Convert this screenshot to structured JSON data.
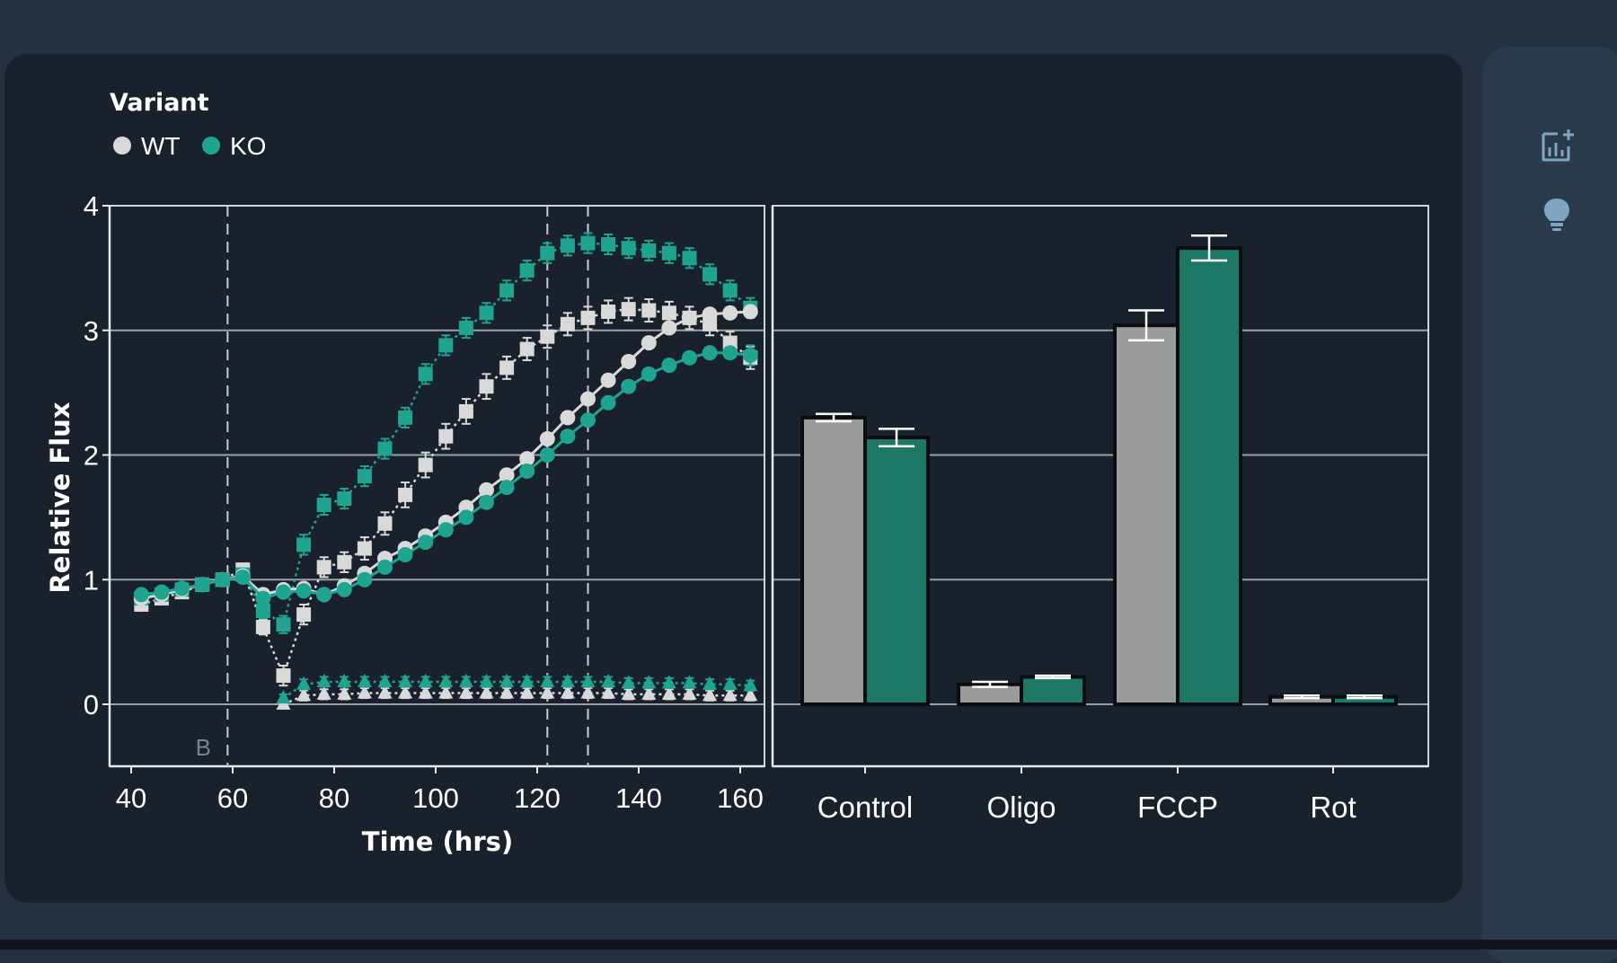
{
  "colors": {
    "page_bg": "#243140",
    "card_bg": "#19222c",
    "side_panel_bg": "#2a3a4b",
    "WT": "#d9d9d9",
    "KO": "#1fa58f",
    "WT_bar": "#9a9c9b",
    "KO_bar": "#1d7866",
    "grid": "#9aa1a8",
    "icon": "#7fa6c0"
  },
  "legend": {
    "title": "Variant",
    "items": [
      {
        "label": "WT",
        "color": "#d9d9d9"
      },
      {
        "label": "KO",
        "color": "#1fa58f"
      }
    ]
  },
  "side_panel": {
    "icons": [
      {
        "name": "add-chart-icon"
      },
      {
        "name": "lightbulb-icon"
      }
    ]
  },
  "chart_data": [
    {
      "type": "line",
      "xlabel": "Time (hrs)",
      "ylabel": "Relative Flux",
      "xlim": [
        36,
        168
      ],
      "ylim": [
        -0.5,
        4
      ],
      "xticks": [
        40,
        60,
        80,
        100,
        120,
        140,
        160
      ],
      "yticks": [
        0,
        1,
        2,
        3,
        4
      ],
      "grid": "horizontal",
      "annotations": [
        {
          "type": "vline",
          "x": 59,
          "style": "dashed",
          "text": "B"
        },
        {
          "type": "vline",
          "x": 122,
          "style": "dashed"
        },
        {
          "type": "vline",
          "x": 130,
          "style": "dashed"
        }
      ],
      "series": [
        {
          "name": "WT",
          "marker": "square",
          "line": "dotted",
          "x": [
            42,
            46,
            50,
            54,
            58,
            62,
            66,
            70,
            74,
            78,
            82,
            86,
            90,
            94,
            98,
            102,
            106,
            110,
            114,
            118,
            122,
            126,
            130,
            134,
            138,
            142,
            146,
            150,
            154,
            158,
            162
          ],
          "y": [
            0.8,
            0.85,
            0.9,
            0.96,
            1.0,
            1.08,
            0.62,
            0.23,
            0.72,
            1.1,
            1.14,
            1.25,
            1.45,
            1.68,
            1.92,
            2.15,
            2.35,
            2.55,
            2.7,
            2.85,
            2.95,
            3.05,
            3.1,
            3.15,
            3.17,
            3.16,
            3.14,
            3.1,
            3.05,
            2.9,
            2.78
          ],
          "err": [
            0.05,
            0.05,
            0.04,
            0.04,
            0.03,
            0.05,
            0.06,
            0.08,
            0.08,
            0.08,
            0.08,
            0.09,
            0.09,
            0.1,
            0.1,
            0.1,
            0.1,
            0.1,
            0.09,
            0.09,
            0.09,
            0.09,
            0.09,
            0.09,
            0.09,
            0.09,
            0.09,
            0.09,
            0.09,
            0.09,
            0.09
          ]
        },
        {
          "name": "KO",
          "marker": "square",
          "line": "dotted",
          "x": [
            42,
            46,
            50,
            54,
            58,
            62,
            66,
            70,
            74,
            78,
            82,
            86,
            90,
            94,
            98,
            102,
            106,
            110,
            114,
            118,
            122,
            126,
            130,
            134,
            138,
            142,
            146,
            150,
            154,
            158,
            162
          ],
          "y": [
            0.85,
            0.88,
            0.92,
            0.96,
            1.0,
            1.04,
            0.75,
            0.64,
            1.28,
            1.6,
            1.65,
            1.83,
            2.05,
            2.3,
            2.65,
            2.88,
            3.02,
            3.14,
            3.32,
            3.48,
            3.62,
            3.68,
            3.7,
            3.69,
            3.66,
            3.64,
            3.62,
            3.58,
            3.45,
            3.32,
            3.18
          ],
          "err": [
            0.05,
            0.05,
            0.04,
            0.04,
            0.03,
            0.05,
            0.06,
            0.07,
            0.08,
            0.08,
            0.08,
            0.08,
            0.08,
            0.08,
            0.08,
            0.08,
            0.08,
            0.08,
            0.08,
            0.08,
            0.08,
            0.08,
            0.08,
            0.08,
            0.08,
            0.08,
            0.08,
            0.08,
            0.08,
            0.08,
            0.08
          ]
        },
        {
          "name": "WT",
          "marker": "circle",
          "line": "solid",
          "x": [
            42,
            46,
            50,
            54,
            58,
            62,
            66,
            70,
            74,
            78,
            82,
            86,
            90,
            94,
            98,
            102,
            106,
            110,
            114,
            118,
            122,
            126,
            130,
            134,
            138,
            142,
            146,
            150,
            154,
            158,
            162
          ],
          "y": [
            0.85,
            0.88,
            0.92,
            0.96,
            1.0,
            1.03,
            0.88,
            0.92,
            0.93,
            0.88,
            0.95,
            1.05,
            1.17,
            1.25,
            1.35,
            1.46,
            1.58,
            1.72,
            1.84,
            1.97,
            2.13,
            2.3,
            2.45,
            2.6,
            2.75,
            2.9,
            3.02,
            3.1,
            3.13,
            3.14,
            3.15
          ],
          "err": [
            0.03,
            0.03,
            0.03,
            0.03,
            0.03,
            0.03,
            0.03,
            0.03,
            0.03,
            0.03,
            0.03,
            0.03,
            0.03,
            0.03,
            0.03,
            0.03,
            0.03,
            0.03,
            0.03,
            0.03,
            0.03,
            0.03,
            0.03,
            0.03,
            0.03,
            0.03,
            0.03,
            0.03,
            0.03,
            0.03,
            0.03
          ]
        },
        {
          "name": "KO",
          "marker": "circle",
          "line": "solid",
          "x": [
            42,
            46,
            50,
            54,
            58,
            62,
            66,
            70,
            74,
            78,
            82,
            86,
            90,
            94,
            98,
            102,
            106,
            110,
            114,
            118,
            122,
            126,
            130,
            134,
            138,
            142,
            146,
            150,
            154,
            158,
            162
          ],
          "y": [
            0.88,
            0.9,
            0.93,
            0.96,
            1.0,
            1.02,
            0.85,
            0.9,
            0.91,
            0.88,
            0.92,
            1.0,
            1.1,
            1.2,
            1.3,
            1.4,
            1.5,
            1.62,
            1.74,
            1.87,
            2.0,
            2.15,
            2.28,
            2.42,
            2.55,
            2.65,
            2.72,
            2.78,
            2.82,
            2.82,
            2.8
          ],
          "err": [
            0.03,
            0.03,
            0.03,
            0.03,
            0.03,
            0.03,
            0.03,
            0.03,
            0.03,
            0.03,
            0.03,
            0.03,
            0.03,
            0.03,
            0.03,
            0.03,
            0.03,
            0.03,
            0.03,
            0.03,
            0.03,
            0.03,
            0.03,
            0.03,
            0.03,
            0.03,
            0.03,
            0.03,
            0.03,
            0.03,
            0.08
          ]
        },
        {
          "name": "WT",
          "marker": "triangle",
          "line": "dotted",
          "x": [
            70,
            74,
            78,
            82,
            86,
            90,
            94,
            98,
            102,
            106,
            110,
            114,
            118,
            122,
            126,
            130,
            134,
            138,
            142,
            146,
            150,
            154,
            158,
            162
          ],
          "y": [
            0.0,
            0.07,
            0.08,
            0.08,
            0.09,
            0.09,
            0.09,
            0.09,
            0.09,
            0.09,
            0.09,
            0.09,
            0.09,
            0.09,
            0.09,
            0.09,
            0.09,
            0.08,
            0.08,
            0.08,
            0.08,
            0.07,
            0.07,
            0.07
          ],
          "err": [
            0.03,
            0.04,
            0.04,
            0.04,
            0.04,
            0.04,
            0.04,
            0.04,
            0.04,
            0.04,
            0.04,
            0.04,
            0.04,
            0.04,
            0.04,
            0.04,
            0.04,
            0.04,
            0.04,
            0.04,
            0.04,
            0.04,
            0.04,
            0.04
          ]
        },
        {
          "name": "KO",
          "marker": "triangle",
          "line": "dotted",
          "x": [
            70,
            74,
            78,
            82,
            86,
            90,
            94,
            98,
            102,
            106,
            110,
            114,
            118,
            122,
            126,
            130,
            134,
            138,
            142,
            146,
            150,
            154,
            158,
            162
          ],
          "y": [
            0.05,
            0.16,
            0.18,
            0.18,
            0.18,
            0.18,
            0.18,
            0.18,
            0.18,
            0.18,
            0.18,
            0.18,
            0.18,
            0.18,
            0.18,
            0.18,
            0.18,
            0.17,
            0.17,
            0.17,
            0.17,
            0.16,
            0.16,
            0.15
          ],
          "err": [
            0.03,
            0.04,
            0.04,
            0.04,
            0.04,
            0.04,
            0.04,
            0.04,
            0.04,
            0.04,
            0.04,
            0.04,
            0.04,
            0.04,
            0.04,
            0.04,
            0.04,
            0.04,
            0.04,
            0.04,
            0.04,
            0.04,
            0.04,
            0.04
          ]
        }
      ]
    },
    {
      "type": "bar",
      "categories": [
        "Control",
        "Oligo",
        "FCCP",
        "Rot"
      ],
      "ylim": [
        -0.5,
        4
      ],
      "grid": "horizontal",
      "series": [
        {
          "name": "WT",
          "values": [
            2.3,
            0.16,
            3.04,
            0.06
          ],
          "err": [
            0.03,
            0.02,
            0.12,
            0.01
          ]
        },
        {
          "name": "KO",
          "values": [
            2.14,
            0.22,
            3.66,
            0.06
          ],
          "err": [
            0.07,
            0.01,
            0.1,
            0.01
          ]
        }
      ]
    }
  ]
}
